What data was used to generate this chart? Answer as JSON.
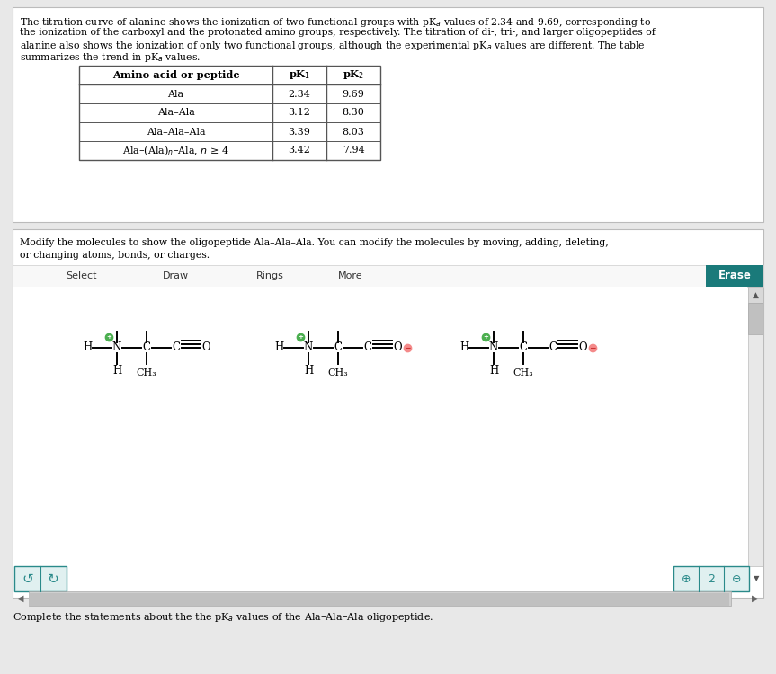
{
  "bg_color": "#e8e8e8",
  "panel_bg": "#ffffff",
  "para_lines": [
    "The titration curve of alanine shows the ionization of two functional groups with pK$_a$ values of 2.34 and 9.69, corresponding to",
    "the ionization of the carboxyl and the protonated amino groups, respectively. The titration of di-, tri-, and larger oligopeptides of",
    "alanine also shows the ionization of only two functional groups, although the experimental pK$_a$ values are different. The table",
    "summarizes the trend in pK$_a$ values."
  ],
  "table_header_col0": "Amino acid or peptide",
  "table_header_col1": "pK$_1$",
  "table_header_col2": "pK$_2$",
  "table_rows": [
    [
      "Ala",
      "2.34",
      "9.69"
    ],
    [
      "Ala–Ala",
      "3.12",
      "8.30"
    ],
    [
      "Ala–Ala–Ala",
      "3.39",
      "8.03"
    ],
    [
      "Ala–(Ala)$_n$–Ala, $n$ ≥ 4",
      "3.42",
      "7.94"
    ]
  ],
  "modify_lines": [
    "Modify the molecules to show the oligopeptide Ala–Ala–Ala. You can modify the molecules by moving, adding, deleting,",
    "or changing atoms, bonds, or charges."
  ],
  "toolbar_items": [
    "Select",
    "Draw",
    "Rings",
    "More"
  ],
  "erase_color": "#1a7a7a",
  "erase_text": "Erase",
  "bottom_text": "Complete the statements about the the pK$_a$ values of the Ala–Ala–Ala oligopeptide.",
  "plus_color": "#4CAF50",
  "minus_color": "#f48a8a",
  "minus_text_color": "#cc3333",
  "toolbar_bg": "#f8f8f8",
  "scroll_gray": "#c8c8c8",
  "scroll_dark": "#999999",
  "icon_border": "#2a8a8a",
  "icon_bg": "#e0f0f0"
}
